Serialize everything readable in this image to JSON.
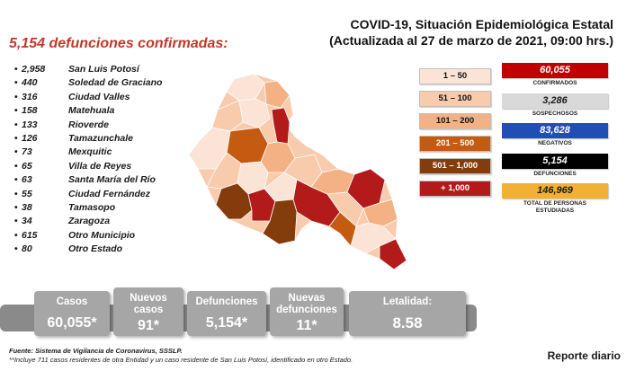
{
  "headline": "5,154 defunciones confirmadas:",
  "title": {
    "line1": "COVID-19, Situación Epidemiológica Estatal",
    "line2": "(Actualizada al 27 de marzo de 2021, 09:00 hrs.)"
  },
  "deaths_by_municipality": [
    {
      "count": "2,958",
      "name": "San Luis Potosí"
    },
    {
      "count": "440",
      "name": "Soledad de Graciano"
    },
    {
      "count": "316",
      "name": "Ciudad Valles"
    },
    {
      "count": "158",
      "name": "Matehuala"
    },
    {
      "count": "133",
      "name": "Rioverde"
    },
    {
      "count": "126",
      "name": "Tamazunchale"
    },
    {
      "count": "73",
      "name": "Mexquitic"
    },
    {
      "count": "65",
      "name": "Villa de Reyes"
    },
    {
      "count": "63",
      "name": "Santa María del Río"
    },
    {
      "count": "55",
      "name": "Ciudad Fernández"
    },
    {
      "count": "38",
      "name": "Tamasopo"
    },
    {
      "count": "34",
      "name": "Zaragoza"
    },
    {
      "count": "615",
      "name": "Otro Municipio"
    },
    {
      "count": "80",
      "name": "Otro Estado"
    }
  ],
  "legend": [
    {
      "label": "1 – 50",
      "color": "#fbe4d5",
      "text": "#111"
    },
    {
      "label": "51 – 100",
      "color": "#f8cbad",
      "text": "#111"
    },
    {
      "label": "101 – 200",
      "color": "#f4b183",
      "text": "#111"
    },
    {
      "label": "201 – 500",
      "color": "#c55a11",
      "text": "#ffffff"
    },
    {
      "label": "501 – 1,000",
      "color": "#843c0c",
      "text": "#ffffff"
    },
    {
      "label": "+ 1,000",
      "color": "#b31b1b",
      "text": "#ffffff"
    }
  ],
  "stats": [
    {
      "value": "60,055",
      "label": "CONFIRMADOS",
      "bg": "#c00000",
      "fg": "#ffffff"
    },
    {
      "value": "3,286",
      "label": "SOSPECHOSOS",
      "bg": "#d9d9d9",
      "fg": "#1a1a1a"
    },
    {
      "value": "83,628",
      "label": "NEGATIVOS",
      "bg": "#1f4fb4",
      "fg": "#ffffff"
    },
    {
      "value": "5,154",
      "label": "DEFUNCIONES",
      "bg": "#000000",
      "fg": "#ffffff"
    },
    {
      "value": "146,969",
      "label": "TOTAL DE PERSONAS ESTUDIADAS",
      "bg": "#f2b134",
      "fg": "#1a1a1a"
    }
  ],
  "summary": {
    "casos_label": "Casos",
    "casos_value": "60,055*",
    "nuevos_casos_label": "Nuevos casos",
    "nuevos_casos_value": "91*",
    "defunciones_label": "Defunciones",
    "defunciones_value": "5,154*",
    "nuevas_defunciones_label": "Nuevas defunciones",
    "nuevas_defunciones_value": "11*",
    "letalidad_label": "Letalidad:",
    "letalidad_value": "8.58"
  },
  "footer": {
    "source": "Fuente: Sistema de Vigilancia de Coronavirus, SSSLP.",
    "note": "**Incluye 711 casos residentes de otra Entidad y un caso residente de San Luis Potosí, identificado en otro Estado."
  },
  "report_label": "Reporte diario"
}
